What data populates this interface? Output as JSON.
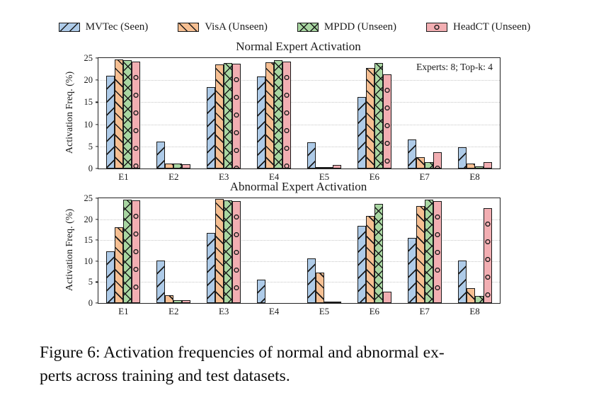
{
  "colors": {
    "mvtec": "#aecbe8",
    "visa": "#f6bf92",
    "mpdd": "#a9d7a2",
    "headct": "#f2aeb2",
    "edge": "#1a1a1a",
    "grid": "#c6c6c6"
  },
  "legend": {
    "items": [
      {
        "label": "MVTec (Seen)",
        "color": "#aecbe8",
        "hatch": "/"
      },
      {
        "label": "VisA (Unseen)",
        "color": "#f6bf92",
        "hatch": "\\"
      },
      {
        "label": "MPDD (Unseen)",
        "color": "#a9d7a2",
        "hatch": "x"
      },
      {
        "label": "HeadCT (Unseen)",
        "color": "#f2aeb2",
        "hatch": "o"
      }
    ]
  },
  "chart_data": [
    {
      "type": "bar",
      "title": "Normal Expert Activation",
      "ylabel": "Activation Freq. (%)",
      "ylim": [
        0,
        25
      ],
      "yticks": [
        0,
        5,
        10,
        15,
        20,
        25
      ],
      "grid": true,
      "legend_position": "top-outside",
      "annotation": "Experts: 8; Top-k: 4",
      "categories": [
        "E1",
        "E2",
        "E3",
        "E4",
        "E5",
        "E6",
        "E7",
        "E8"
      ],
      "series": [
        {
          "name": "MVTec (Seen)",
          "values": [
            21.0,
            6.1,
            18.4,
            20.9,
            5.9,
            16.2,
            6.5,
            4.8
          ]
        },
        {
          "name": "VisA (Unseen)",
          "values": [
            24.7,
            1.1,
            23.5,
            24.0,
            0.2,
            22.8,
            2.6,
            1.2
          ]
        },
        {
          "name": "MPDD (Unseen)",
          "values": [
            24.5,
            1.1,
            23.9,
            24.5,
            0.4,
            23.9,
            1.4,
            0.5
          ]
        },
        {
          "name": "HeadCT (Unseen)",
          "values": [
            24.2,
            0.9,
            23.8,
            24.2,
            0.8,
            21.3,
            3.7,
            1.4
          ]
        }
      ]
    },
    {
      "type": "bar",
      "title": "Abnormal Expert Activation",
      "ylabel": "Activation Freq. (%)",
      "ylim": [
        0,
        25
      ],
      "yticks": [
        0,
        5,
        10,
        15,
        20,
        25
      ],
      "grid": true,
      "categories": [
        "E1",
        "E2",
        "E3",
        "E4",
        "E5",
        "E6",
        "E7",
        "E8"
      ],
      "series": [
        {
          "name": "MVTec (Seen)",
          "values": [
            12.4,
            10.1,
            16.7,
            5.6,
            10.7,
            18.4,
            15.5,
            10.2
          ]
        },
        {
          "name": "VisA (Unseen)",
          "values": [
            18.0,
            1.8,
            24.9,
            0.0,
            7.2,
            20.8,
            23.2,
            3.6
          ]
        },
        {
          "name": "MPDD (Unseen)",
          "values": [
            24.6,
            0.6,
            24.5,
            0.0,
            0.2,
            23.6,
            24.6,
            1.7
          ]
        },
        {
          "name": "HeadCT (Unseen)",
          "values": [
            24.5,
            0.6,
            24.4,
            0.0,
            0.15,
            2.7,
            24.4,
            22.6
          ]
        }
      ]
    }
  ],
  "caption": {
    "line1": "Figure 6: Activation frequencies of normal and abnormal ex-",
    "line2": "perts across training and test datasets."
  }
}
